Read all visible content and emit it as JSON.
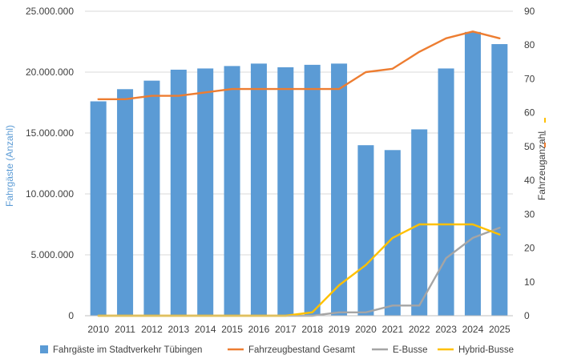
{
  "chart_data": {
    "type": "bar",
    "categories": [
      "2010",
      "2011",
      "2012",
      "2013",
      "2014",
      "2015",
      "2016",
      "2017",
      "2018",
      "2019",
      "2020",
      "2021",
      "2022",
      "2023",
      "2024",
      "2025"
    ],
    "ylabel": "Fahrgäste (Anzahl)",
    "y2label": "Fahrzeuganzahl",
    "ylim": [
      0,
      25000000
    ],
    "y2lim": [
      0,
      90
    ],
    "yticks": [
      "0",
      "5.000.000",
      "10.000.000",
      "15.000.000",
      "20.000.000",
      "25.000.000"
    ],
    "y2ticks": [
      "0",
      "10",
      "20",
      "30",
      "40",
      "50",
      "60",
      "70",
      "80",
      "90"
    ],
    "grid": true,
    "legend_position": "bottom",
    "bars": {
      "name": "Fahrgäste im Stadtverkehr Tübingen",
      "color": "#5b9bd5",
      "values": [
        17600000,
        18600000,
        19300000,
        20200000,
        20300000,
        20500000,
        20700000,
        20400000,
        20600000,
        20700000,
        14000000,
        13600000,
        15300000,
        20300000,
        23300000,
        22300000
      ]
    },
    "lines": [
      {
        "name": "Fahrzeugbestand Gesamt",
        "color": "#ed7d31",
        "axis": "right",
        "values": [
          64,
          64,
          65,
          65,
          66,
          67,
          67,
          67,
          67,
          67,
          72,
          73,
          78,
          82,
          84,
          82
        ]
      },
      {
        "name": "E-Busse",
        "color": "#a5a5a5",
        "axis": "right",
        "values": [
          0,
          0,
          0,
          0,
          0,
          0,
          0,
          0,
          0,
          1,
          1,
          3,
          3,
          17,
          23,
          26
        ]
      },
      {
        "name": "Hybrid-Busse",
        "color": "#ffc000",
        "axis": "right",
        "values": [
          0,
          0,
          0,
          0,
          0,
          0,
          0,
          0,
          1,
          9,
          15,
          23,
          27,
          27,
          27,
          24
        ]
      }
    ]
  }
}
